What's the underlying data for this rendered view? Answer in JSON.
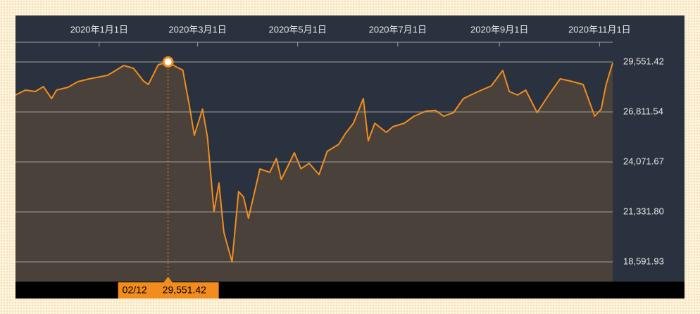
{
  "chart_data": {
    "type": "area",
    "x": [
      "2019-11-11",
      "2019-11-17",
      "2019-11-23",
      "2019-11-28",
      "2019-12-03",
      "2019-12-06",
      "2019-12-13",
      "2019-12-19",
      "2019-12-26",
      "2020-01-06",
      "2020-01-09",
      "2020-01-16",
      "2020-01-22",
      "2020-01-28",
      "2020-01-31",
      "2020-02-06",
      "2020-02-12",
      "2020-02-17",
      "2020-02-21",
      "2020-02-25",
      "2020-02-28",
      "2020-03-04",
      "2020-03-07",
      "2020-03-11",
      "2020-03-14",
      "2020-03-17",
      "2020-03-22",
      "2020-03-26",
      "2020-03-29",
      "2020-04-01",
      "2020-04-08",
      "2020-04-14",
      "2020-04-18",
      "2020-04-21",
      "2020-04-29",
      "2020-05-03",
      "2020-05-08",
      "2020-05-14",
      "2020-05-19",
      "2020-05-26",
      "2020-05-30",
      "2020-06-04",
      "2020-06-10",
      "2020-06-13",
      "2020-06-17",
      "2020-06-24",
      "2020-06-28",
      "2020-07-05",
      "2020-07-11",
      "2020-07-18",
      "2020-07-24",
      "2020-07-29",
      "2020-08-04",
      "2020-08-10",
      "2020-08-19",
      "2020-08-27",
      "2020-09-03",
      "2020-09-07",
      "2020-09-12",
      "2020-09-17",
      "2020-09-24",
      "2020-10-01",
      "2020-10-08",
      "2020-10-14",
      "2020-10-22",
      "2020-10-29",
      "2020-11-02",
      "2020-11-05",
      "2020-11-09"
    ],
    "series": [
      {
        "color": "#f28c1e",
        "fill": "#4a413a",
        "values": [
          27738,
          28008,
          27931,
          28201,
          27545,
          28008,
          28162,
          28471,
          28625,
          28818,
          28973,
          29359,
          29200,
          28510,
          28317,
          29397,
          29551.42,
          29281,
          29100,
          27159,
          25538,
          26966,
          25422,
          21370,
          22914,
          20213,
          18592,
          22451,
          22150,
          20985,
          23686,
          23500,
          24265,
          23107,
          24573,
          23700,
          23995,
          23377,
          24650,
          25037,
          25615,
          26194,
          27545,
          25229,
          26194,
          25693,
          26000,
          26194,
          26580,
          26850,
          26900,
          26580,
          26773,
          27545,
          27931,
          28240,
          29088,
          27931,
          27738,
          28008,
          26773,
          27738,
          28625,
          28509,
          28317,
          26580,
          26966,
          28317,
          29500
        ]
      }
    ],
    "xlim": [
      "2019-11-11",
      "2020-11-09"
    ],
    "xticks": [
      {
        "value": "2020-01-01",
        "label": "2020年1月1日"
      },
      {
        "value": "2020-03-01",
        "label": "2020年3月1日"
      },
      {
        "value": "2020-05-01",
        "label": "2020年5月1日"
      },
      {
        "value": "2020-07-01",
        "label": "2020年7月1日"
      },
      {
        "value": "2020-09-01",
        "label": "2020年9月1日"
      },
      {
        "value": "2020-11-01",
        "label": "2020年11月1日"
      }
    ],
    "ylim": [
      17511,
      30632
    ],
    "yticks": [
      {
        "value": 18591.93,
        "label": "18,591.93"
      },
      {
        "value": 21331.8,
        "label": "21,331.80"
      },
      {
        "value": 24071.67,
        "label": "24,071.67"
      },
      {
        "value": 26811.54,
        "label": "26,811.54"
      },
      {
        "value": 29551.42,
        "label": "29,551.42"
      }
    ],
    "grid": true,
    "highlight": {
      "x": "2020-02-12",
      "date_label": "02/12",
      "value": 29551.42,
      "value_label": "29,551.42"
    }
  }
}
